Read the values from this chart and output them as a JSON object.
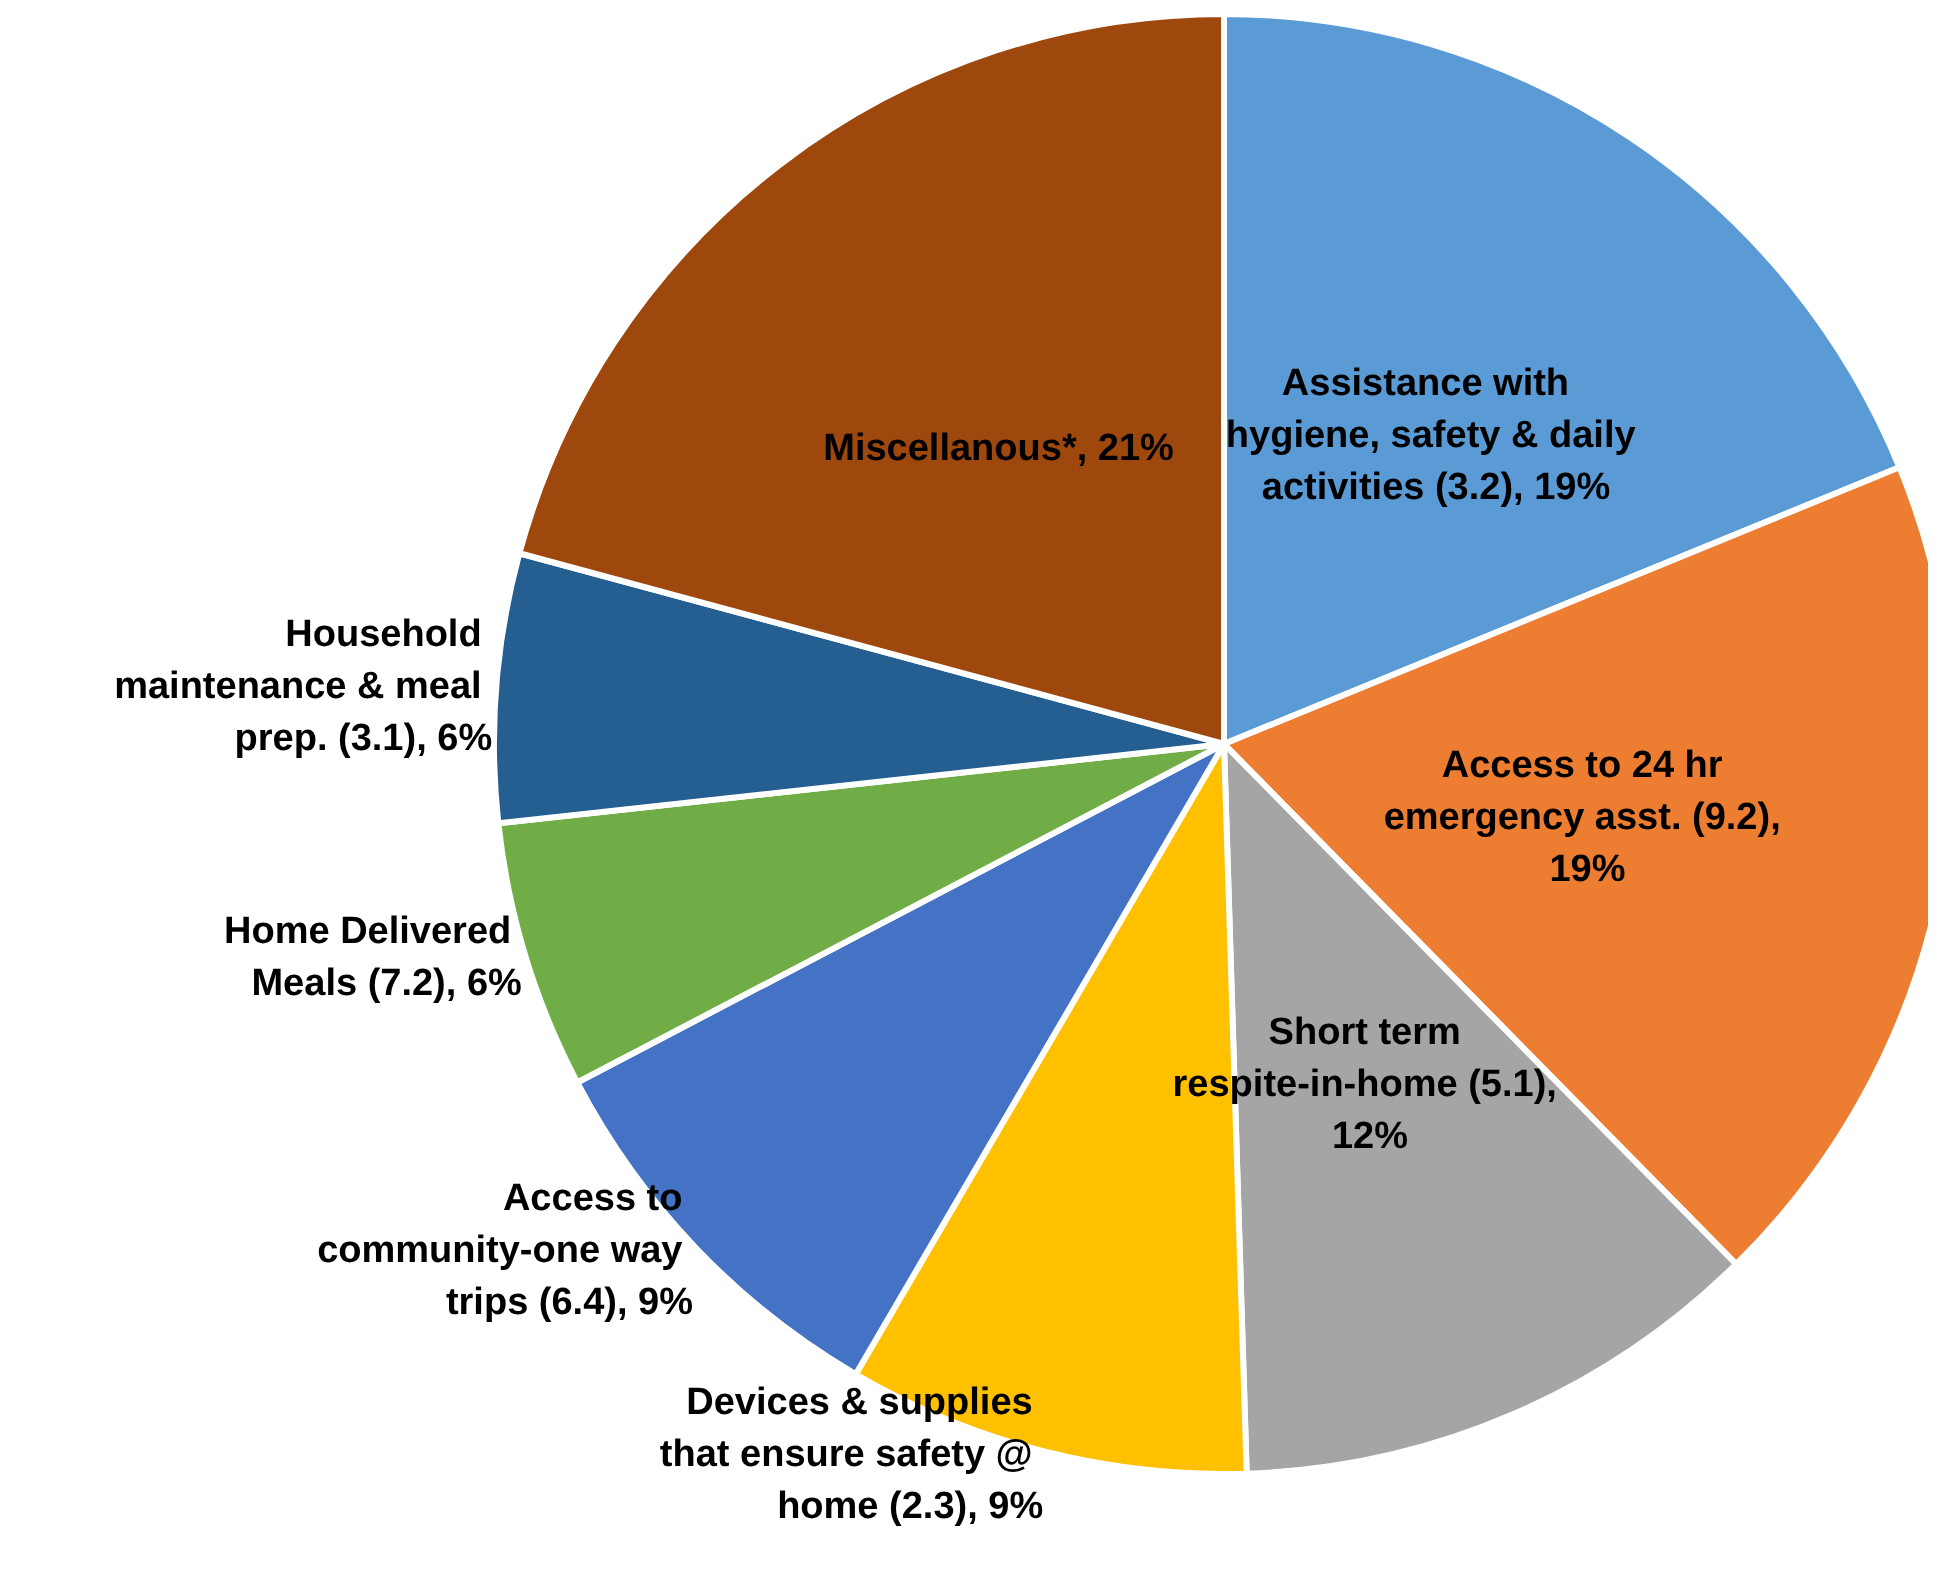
{
  "chart_data": {
    "type": "pie",
    "categories": [
      "Assistance with hygiene, safety & daily activities (3.2), 19%",
      "Access to 24 hr emergency asst. (9.2), 19%",
      "Short term respite-in-home (5.1), 12%",
      "Devices & supplies that ensure safety @ home (2.3), 9%",
      "Access to community-one way trips (6.4), 9%",
      "Home Delivered Meals (7.2), 6%",
      "Household maintenance & meal prep. (3.1), 6%",
      "Miscellanous*, 21%"
    ],
    "values": [
      19,
      19,
      12,
      9,
      9,
      6,
      6,
      21
    ],
    "colors": [
      "#5b9bd5",
      "#ed7d31",
      "#a5a5a5",
      "#ffc000",
      "#4472c4",
      "#70ad47",
      "#255e91",
      "#9e480e"
    ],
    "legend": false
  }
}
